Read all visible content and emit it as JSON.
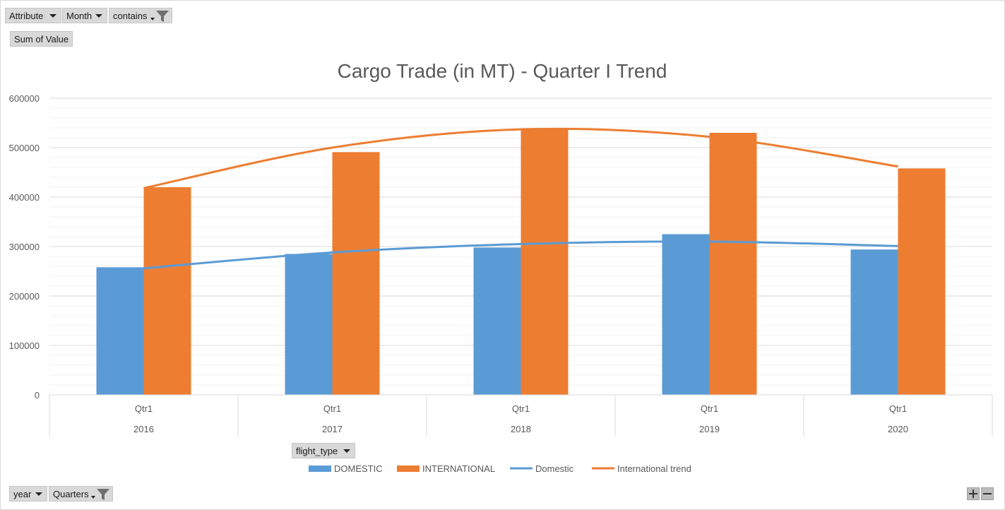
{
  "filters": {
    "attribute": "Attribute",
    "month": "Month",
    "contains": "contains",
    "values_field": "Sum of Value",
    "legend_field": "flight_type",
    "axis_year": "year",
    "axis_quarters": "Quarters"
  },
  "icons": {
    "funnel": "filter-funnel-icon",
    "dropdown": "dropdown-arrow-icon",
    "zoom_in": "plus-icon",
    "zoom_out": "minus-icon"
  },
  "chart_data": {
    "type": "bar",
    "title": "Cargo Trade (in MT) - Quarter I Trend",
    "categories": [
      "Qtr1",
      "Qtr1",
      "Qtr1",
      "Qtr1",
      "Qtr1"
    ],
    "category_groups": [
      "2016",
      "2017",
      "2018",
      "2019",
      "2020"
    ],
    "ylim": [
      0,
      600000
    ],
    "yticks": [
      "0",
      "100000",
      "200000",
      "300000",
      "400000",
      "500000",
      "600000"
    ],
    "grid": true,
    "legend_position": "bottom",
    "series": [
      {
        "name": "DOMESTIC",
        "kind": "bar",
        "color": "#5b9bd5",
        "values": [
          258000,
          285000,
          298000,
          325000,
          294000
        ]
      },
      {
        "name": "INTERNATIONAL",
        "kind": "bar",
        "color": "#ed7d31",
        "values": [
          420000,
          491000,
          538000,
          530000,
          458000
        ]
      }
    ],
    "trendlines": [
      {
        "name": "Domestic",
        "color": "#5b9bd5",
        "values": [
          256000,
          288000,
          305000,
          310000,
          301000
        ]
      },
      {
        "name": "International trend",
        "color": "#ed7d31",
        "values": [
          418000,
          500000,
          537000,
          522000,
          462000
        ]
      }
    ]
  }
}
